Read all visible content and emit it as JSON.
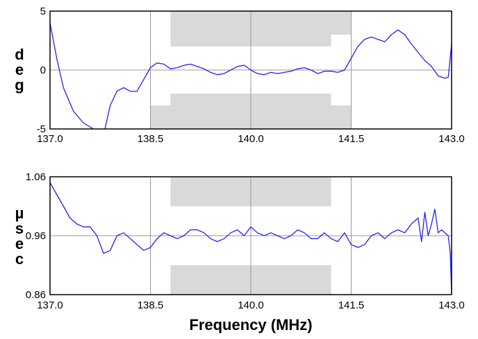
{
  "chart_data": [
    {
      "type": "line",
      "ylabel": "deg",
      "xlim": [
        137.0,
        143.0
      ],
      "ylim": [
        -5,
        5
      ],
      "x_ticks": [
        "137.0",
        "138.5",
        "140.0",
        "141.5",
        "143.0"
      ],
      "y_ticks": [
        "5",
        "0",
        "-5"
      ],
      "grid": true,
      "colors": {
        "series": "#2222ee",
        "mask": "#d9d9d9",
        "grid": "#999999",
        "frame": "#000000"
      },
      "mask": {
        "upper": [
          [
            138.5,
            5
          ],
          [
            138.8,
            5
          ],
          [
            138.8,
            2
          ],
          [
            141.2,
            2
          ],
          [
            141.2,
            3
          ],
          [
            141.5,
            3
          ],
          [
            141.5,
            5
          ]
        ],
        "lower": [
          [
            138.5,
            -5
          ],
          [
            138.5,
            -3
          ],
          [
            138.8,
            -3
          ],
          [
            138.8,
            -2
          ],
          [
            141.2,
            -2
          ],
          [
            141.2,
            -3
          ],
          [
            141.5,
            -3
          ],
          [
            141.5,
            -5
          ]
        ]
      },
      "series": [
        {
          "x": [
            137.0,
            137.05,
            137.1,
            137.2,
            137.35,
            137.5,
            137.65,
            137.8,
            137.9,
            138.0,
            138.1,
            138.2,
            138.3,
            138.4,
            138.5,
            138.6,
            138.7,
            138.8,
            138.9,
            139.0,
            139.1,
            139.2,
            139.3,
            139.4,
            139.5,
            139.6,
            139.7,
            139.8,
            139.9,
            140.0,
            140.1,
            140.2,
            140.3,
            140.4,
            140.5,
            140.6,
            140.7,
            140.8,
            140.9,
            141.0,
            141.1,
            141.2,
            141.3,
            141.4,
            141.5,
            141.6,
            141.7,
            141.8,
            141.9,
            142.0,
            142.1,
            142.2,
            142.3,
            142.4,
            142.5,
            142.6,
            142.7,
            142.8,
            142.9,
            142.95,
            143.0
          ],
          "y": [
            4.0,
            2.5,
            1.0,
            -1.5,
            -3.5,
            -4.5,
            -5.0,
            -5.5,
            -3.0,
            -1.8,
            -1.5,
            -1.8,
            -1.8,
            -0.8,
            0.2,
            0.6,
            0.5,
            0.1,
            0.2,
            0.4,
            0.5,
            0.3,
            0.1,
            -0.2,
            -0.4,
            -0.3,
            0.0,
            0.3,
            0.4,
            0.0,
            -0.3,
            -0.4,
            -0.2,
            -0.3,
            -0.2,
            -0.1,
            0.1,
            0.2,
            0.0,
            -0.3,
            -0.1,
            -0.1,
            -0.2,
            0.0,
            1.0,
            2.0,
            2.6,
            2.8,
            2.6,
            2.4,
            3.0,
            3.4,
            3.0,
            2.2,
            1.5,
            0.8,
            0.3,
            -0.5,
            -0.7,
            -0.6,
            2.2
          ]
        }
      ]
    },
    {
      "type": "line",
      "xlabel": "Frequency (MHz)",
      "ylabel": "µsec",
      "xlim": [
        137.0,
        143.0
      ],
      "ylim": [
        0.86,
        1.06
      ],
      "x_ticks": [
        "137.0",
        "138.5",
        "140.0",
        "141.5",
        "143.0"
      ],
      "y_ticks": [
        "1.06",
        "0.96",
        "0.86"
      ],
      "grid": true,
      "colors": {
        "series": "#2222ee",
        "mask": "#d9d9d9",
        "grid": "#999999",
        "frame": "#000000"
      },
      "mask": {
        "upper": [
          [
            138.8,
            1.06
          ],
          [
            138.8,
            1.01
          ],
          [
            141.2,
            1.01
          ],
          [
            141.2,
            1.06
          ]
        ],
        "lower": [
          [
            138.8,
            0.86
          ],
          [
            138.8,
            0.91
          ],
          [
            141.2,
            0.91
          ],
          [
            141.2,
            0.86
          ]
        ]
      },
      "series": [
        {
          "x": [
            137.0,
            137.1,
            137.2,
            137.3,
            137.4,
            137.5,
            137.6,
            137.7,
            137.8,
            137.9,
            138.0,
            138.1,
            138.2,
            138.3,
            138.4,
            138.5,
            138.6,
            138.7,
            138.8,
            138.9,
            139.0,
            139.1,
            139.2,
            139.3,
            139.4,
            139.5,
            139.6,
            139.7,
            139.8,
            139.9,
            140.0,
            140.1,
            140.2,
            140.3,
            140.4,
            140.5,
            140.6,
            140.7,
            140.8,
            140.9,
            141.0,
            141.1,
            141.2,
            141.3,
            141.4,
            141.5,
            141.6,
            141.7,
            141.8,
            141.9,
            142.0,
            142.1,
            142.2,
            142.3,
            142.4,
            142.5,
            142.55,
            142.6,
            142.65,
            142.7,
            142.75,
            142.8,
            142.85,
            142.9,
            142.95,
            142.98,
            143.0
          ],
          "y": [
            1.05,
            1.03,
            1.01,
            0.99,
            0.98,
            0.975,
            0.975,
            0.96,
            0.93,
            0.935,
            0.96,
            0.965,
            0.955,
            0.945,
            0.935,
            0.94,
            0.955,
            0.965,
            0.96,
            0.955,
            0.96,
            0.97,
            0.97,
            0.965,
            0.955,
            0.95,
            0.955,
            0.965,
            0.97,
            0.96,
            0.975,
            0.965,
            0.96,
            0.965,
            0.96,
            0.955,
            0.96,
            0.97,
            0.965,
            0.955,
            0.955,
            0.965,
            0.955,
            0.95,
            0.965,
            0.945,
            0.94,
            0.945,
            0.96,
            0.965,
            0.955,
            0.965,
            0.97,
            0.965,
            0.98,
            0.99,
            0.95,
            1.0,
            0.96,
            0.98,
            1.005,
            0.965,
            0.97,
            0.965,
            0.96,
            0.93,
            0.86
          ]
        }
      ]
    }
  ]
}
